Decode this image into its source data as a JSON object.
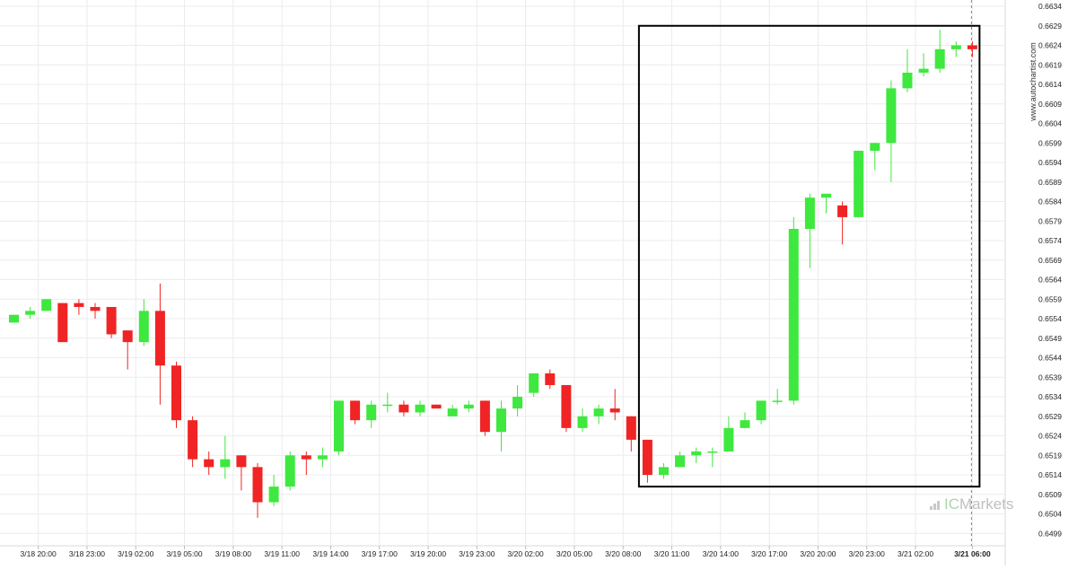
{
  "watermark": "www.autochartist.com",
  "brand": {
    "prefix": "IC",
    "name": "Markets"
  },
  "colors": {
    "up": "#3ee83e",
    "down": "#f02424",
    "grid": "#ececec",
    "box": "#000000"
  },
  "chart_data": {
    "type": "candlestick",
    "ylim": [
      0.6497,
      0.6634
    ],
    "yticks": [
      0.6499,
      0.6504,
      0.6509,
      0.6514,
      0.6519,
      0.6524,
      0.6529,
      0.6534,
      0.6539,
      0.6544,
      0.6549,
      0.6554,
      0.6559,
      0.6564,
      0.6569,
      0.6574,
      0.6579,
      0.6584,
      0.6589,
      0.6594,
      0.6599,
      0.6604,
      0.6609,
      0.6614,
      0.6619,
      0.6624,
      0.6629,
      0.6634
    ],
    "ytick_labels": [
      "0.6499",
      "0.6504",
      "0.6509",
      "0.6514",
      "0.6519",
      "0.6524",
      "0.6529",
      "0.6534",
      "0.6539",
      "0.6544",
      "0.6549",
      "0.6554",
      "0.6559",
      "0.6564",
      "0.6569",
      "0.6574",
      "0.6579",
      "0.6584",
      "0.6589",
      "0.6594",
      "0.6599",
      "0.6604",
      "0.6609",
      "0.6614",
      "0.6619",
      "0.6624",
      "0.6629",
      "0.6634"
    ],
    "xtick_labels": [
      "3/18 20:00",
      "3/18 23:00",
      "3/19 02:00",
      "3/19 05:00",
      "3/19 08:00",
      "3/19 11:00",
      "3/19 14:00",
      "3/19 17:00",
      "3/19 20:00",
      "3/19 23:00",
      "3/20 02:00",
      "3/20 05:00",
      "3/20 08:00",
      "3/20 11:00",
      "3/20 14:00",
      "3/20 17:00",
      "3/20 20:00",
      "3/20 23:00",
      "3/21 02:00",
      "3/21 06:00"
    ],
    "xtick_candle_index": [
      1.5,
      4.5,
      7.5,
      10.5,
      13.5,
      16.5,
      19.5,
      22.5,
      25.5,
      28.5,
      31.5,
      34.5,
      37.5,
      40.5,
      43.5,
      46.5,
      49.5,
      52.5,
      55.5,
      59
    ],
    "current_label": "3/21 06:00",
    "candles": [
      {
        "o": 0.6553,
        "h": 0.6555,
        "l": 0.6553,
        "c": 0.6555
      },
      {
        "o": 0.6555,
        "h": 0.6557,
        "l": 0.6554,
        "c": 0.6556
      },
      {
        "o": 0.6556,
        "h": 0.6559,
        "l": 0.6556,
        "c": 0.6559
      },
      {
        "o": 0.6558,
        "h": 0.6558,
        "l": 0.6548,
        "c": 0.6548
      },
      {
        "o": 0.6558,
        "h": 0.6559,
        "l": 0.6555,
        "c": 0.6557
      },
      {
        "o": 0.6557,
        "h": 0.6558,
        "l": 0.6554,
        "c": 0.6556
      },
      {
        "o": 0.6557,
        "h": 0.6557,
        "l": 0.6549,
        "c": 0.655
      },
      {
        "o": 0.6551,
        "h": 0.6551,
        "l": 0.6541,
        "c": 0.6548
      },
      {
        "o": 0.6548,
        "h": 0.6559,
        "l": 0.6547,
        "c": 0.6556
      },
      {
        "o": 0.6556,
        "h": 0.6563,
        "l": 0.6532,
        "c": 0.6542
      },
      {
        "o": 0.6542,
        "h": 0.6543,
        "l": 0.6526,
        "c": 0.6528
      },
      {
        "o": 0.6528,
        "h": 0.6529,
        "l": 0.6516,
        "c": 0.6518
      },
      {
        "o": 0.6518,
        "h": 0.652,
        "l": 0.6514,
        "c": 0.6516
      },
      {
        "o": 0.6516,
        "h": 0.6524,
        "l": 0.6513,
        "c": 0.6518
      },
      {
        "o": 0.6519,
        "h": 0.6519,
        "l": 0.651,
        "c": 0.6516
      },
      {
        "o": 0.6516,
        "h": 0.6517,
        "l": 0.6503,
        "c": 0.6507
      },
      {
        "o": 0.6507,
        "h": 0.6514,
        "l": 0.6506,
        "c": 0.6511
      },
      {
        "o": 0.6511,
        "h": 0.652,
        "l": 0.651,
        "c": 0.6519
      },
      {
        "o": 0.6519,
        "h": 0.652,
        "l": 0.6514,
        "c": 0.6518
      },
      {
        "o": 0.6518,
        "h": 0.6521,
        "l": 0.6516,
        "c": 0.6519
      },
      {
        "o": 0.652,
        "h": 0.6533,
        "l": 0.6519,
        "c": 0.6533
      },
      {
        "o": 0.6533,
        "h": 0.6533,
        "l": 0.6527,
        "c": 0.6528
      },
      {
        "o": 0.6528,
        "h": 0.6533,
        "l": 0.6526,
        "c": 0.6532
      },
      {
        "o": 0.6532,
        "h": 0.6535,
        "l": 0.653,
        "c": 0.6532
      },
      {
        "o": 0.6532,
        "h": 0.6533,
        "l": 0.6529,
        "c": 0.653
      },
      {
        "o": 0.653,
        "h": 0.6533,
        "l": 0.6529,
        "c": 0.6532
      },
      {
        "o": 0.6532,
        "h": 0.6532,
        "l": 0.6531,
        "c": 0.6531
      },
      {
        "o": 0.6529,
        "h": 0.6532,
        "l": 0.6529,
        "c": 0.6531
      },
      {
        "o": 0.6531,
        "h": 0.6533,
        "l": 0.653,
        "c": 0.6532
      },
      {
        "o": 0.6533,
        "h": 0.6533,
        "l": 0.6524,
        "c": 0.6525
      },
      {
        "o": 0.6525,
        "h": 0.6533,
        "l": 0.652,
        "c": 0.6531
      },
      {
        "o": 0.6531,
        "h": 0.6537,
        "l": 0.6529,
        "c": 0.6534
      },
      {
        "o": 0.6535,
        "h": 0.654,
        "l": 0.6534,
        "c": 0.654
      },
      {
        "o": 0.654,
        "h": 0.6541,
        "l": 0.6536,
        "c": 0.6537
      },
      {
        "o": 0.6537,
        "h": 0.6537,
        "l": 0.6525,
        "c": 0.6526
      },
      {
        "o": 0.6526,
        "h": 0.6531,
        "l": 0.6525,
        "c": 0.6529
      },
      {
        "o": 0.6529,
        "h": 0.6532,
        "l": 0.6527,
        "c": 0.6531
      },
      {
        "o": 0.6531,
        "h": 0.6536,
        "l": 0.6528,
        "c": 0.653
      },
      {
        "o": 0.6529,
        "h": 0.6529,
        "l": 0.652,
        "c": 0.6523
      },
      {
        "o": 0.6523,
        "h": 0.6523,
        "l": 0.6512,
        "c": 0.6514
      },
      {
        "o": 0.6514,
        "h": 0.6517,
        "l": 0.6513,
        "c": 0.6516
      },
      {
        "o": 0.6516,
        "h": 0.652,
        "l": 0.6516,
        "c": 0.6519
      },
      {
        "o": 0.6519,
        "h": 0.6521,
        "l": 0.6517,
        "c": 0.652
      },
      {
        "o": 0.652,
        "h": 0.6521,
        "l": 0.6516,
        "c": 0.652
      },
      {
        "o": 0.652,
        "h": 0.6529,
        "l": 0.652,
        "c": 0.6526
      },
      {
        "o": 0.6526,
        "h": 0.653,
        "l": 0.6526,
        "c": 0.6528
      },
      {
        "o": 0.6528,
        "h": 0.6533,
        "l": 0.6527,
        "c": 0.6533
      },
      {
        "o": 0.6533,
        "h": 0.6536,
        "l": 0.6532,
        "c": 0.6533
      },
      {
        "o": 0.6533,
        "h": 0.658,
        "l": 0.6532,
        "c": 0.6577
      },
      {
        "o": 0.6577,
        "h": 0.6586,
        "l": 0.6567,
        "c": 0.6585
      },
      {
        "o": 0.6585,
        "h": 0.6586,
        "l": 0.6581,
        "c": 0.6586
      },
      {
        "o": 0.6583,
        "h": 0.6584,
        "l": 0.6573,
        "c": 0.658
      },
      {
        "o": 0.658,
        "h": 0.6597,
        "l": 0.658,
        "c": 0.6597
      },
      {
        "o": 0.6597,
        "h": 0.6599,
        "l": 0.6592,
        "c": 0.6599
      },
      {
        "o": 0.6599,
        "h": 0.6615,
        "l": 0.6589,
        "c": 0.6613
      },
      {
        "o": 0.6613,
        "h": 0.6623,
        "l": 0.6612,
        "c": 0.6617
      },
      {
        "o": 0.6617,
        "h": 0.6622,
        "l": 0.6616,
        "c": 0.6618
      },
      {
        "o": 0.6618,
        "h": 0.6628,
        "l": 0.6617,
        "c": 0.6623
      },
      {
        "o": 0.6623,
        "h": 0.6625,
        "l": 0.6621,
        "c": 0.6624
      },
      {
        "o": 0.6624,
        "h": 0.6625,
        "l": 0.6621,
        "c": 0.6623
      }
    ],
    "highlight_box": {
      "start_index": 39,
      "end_index": 59,
      "y_top": 0.6629,
      "y_bottom": 0.6511
    },
    "grid": true
  }
}
